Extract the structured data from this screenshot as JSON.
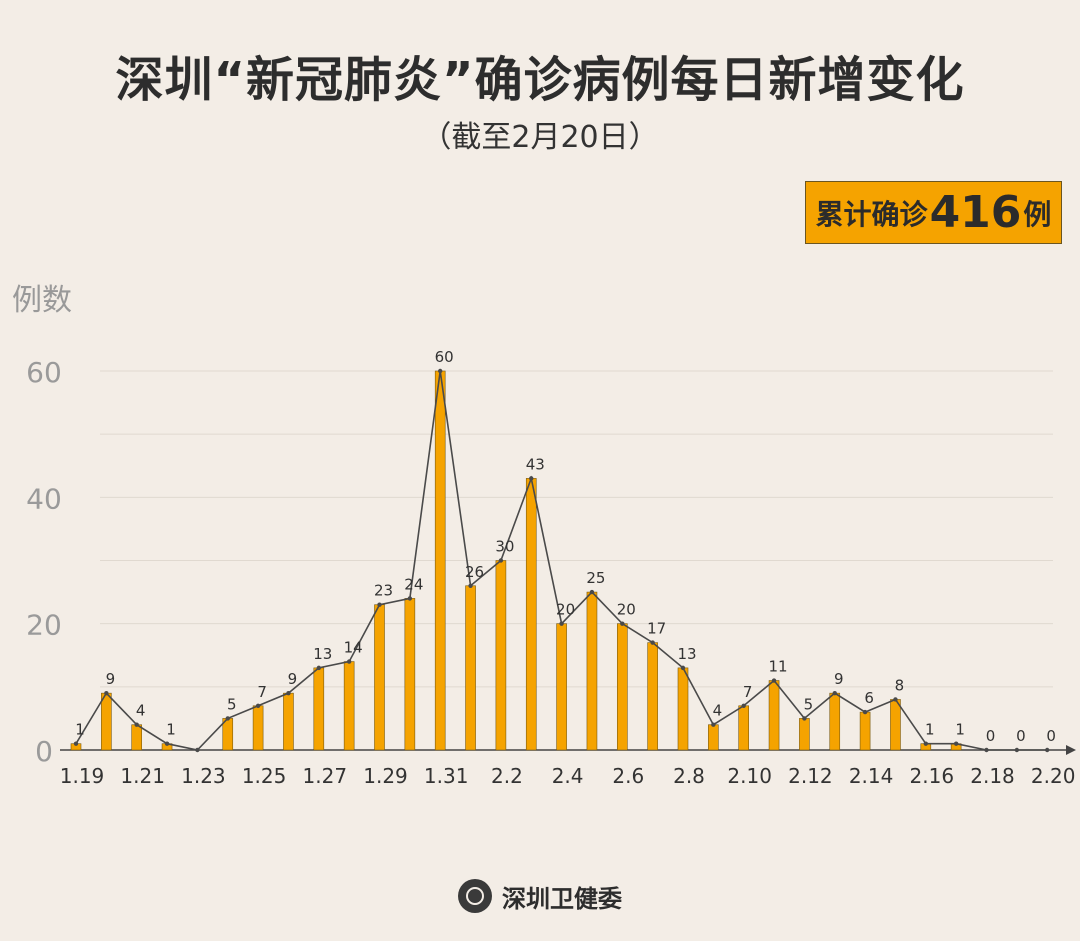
{
  "title": "深圳“新冠肺炎”确诊病例每日新增变化",
  "subtitle": "（截至2月20日）",
  "total": {
    "prefix": "累计确诊",
    "number": "416",
    "suffix": "例"
  },
  "footer": {
    "org": "深圳卫健委",
    "logo_icon": "health-commission-logo"
  },
  "colors": {
    "bar": "#f5a300",
    "line": "#4a4a4a",
    "grid": "#e0d9d0",
    "axis": "#444444"
  },
  "chart_data": {
    "type": "bar",
    "overlay": "line",
    "ylabel": "例数",
    "ylim": [
      0,
      60
    ],
    "yticks": [
      0,
      20,
      40,
      60
    ],
    "grid": true,
    "categories": [
      "1.19",
      "1.20",
      "1.21",
      "1.22",
      "1.23",
      "1.24",
      "1.25",
      "1.26",
      "1.27",
      "1.28",
      "1.29",
      "1.30",
      "1.31",
      "2.1",
      "2.2",
      "2.3",
      "2.4",
      "2.5",
      "2.6",
      "2.7",
      "2.8",
      "2.9",
      "2.10",
      "2.11",
      "2.12",
      "2.13",
      "2.14",
      "2.15",
      "2.16",
      "2.17",
      "2.18",
      "2.19",
      "2.20"
    ],
    "xtick_labels": [
      "1.19",
      "1.21",
      "1.23",
      "1.25",
      "1.27",
      "1.29",
      "1.31",
      "2.2",
      "2.4",
      "2.6",
      "2.8",
      "2.10",
      "2.12",
      "2.14",
      "2.16",
      "2.18",
      "2.20"
    ],
    "values": [
      1,
      9,
      4,
      1,
      0,
      5,
      7,
      9,
      13,
      14,
      23,
      24,
      60,
      26,
      30,
      43,
      20,
      25,
      20,
      17,
      13,
      4,
      7,
      11,
      5,
      9,
      6,
      8,
      1,
      1,
      0,
      0,
      0
    ],
    "data_labels": [
      "1",
      "9",
      "4",
      "1",
      "",
      "5",
      "7",
      "9",
      "13",
      "14",
      "23",
      "24",
      "60",
      "26",
      "30",
      "43",
      "20",
      "25",
      "20",
      "17",
      "13",
      "4",
      "7",
      "11",
      "5",
      "9",
      "6",
      "8",
      "1",
      "1",
      "0",
      "0",
      "0"
    ]
  }
}
